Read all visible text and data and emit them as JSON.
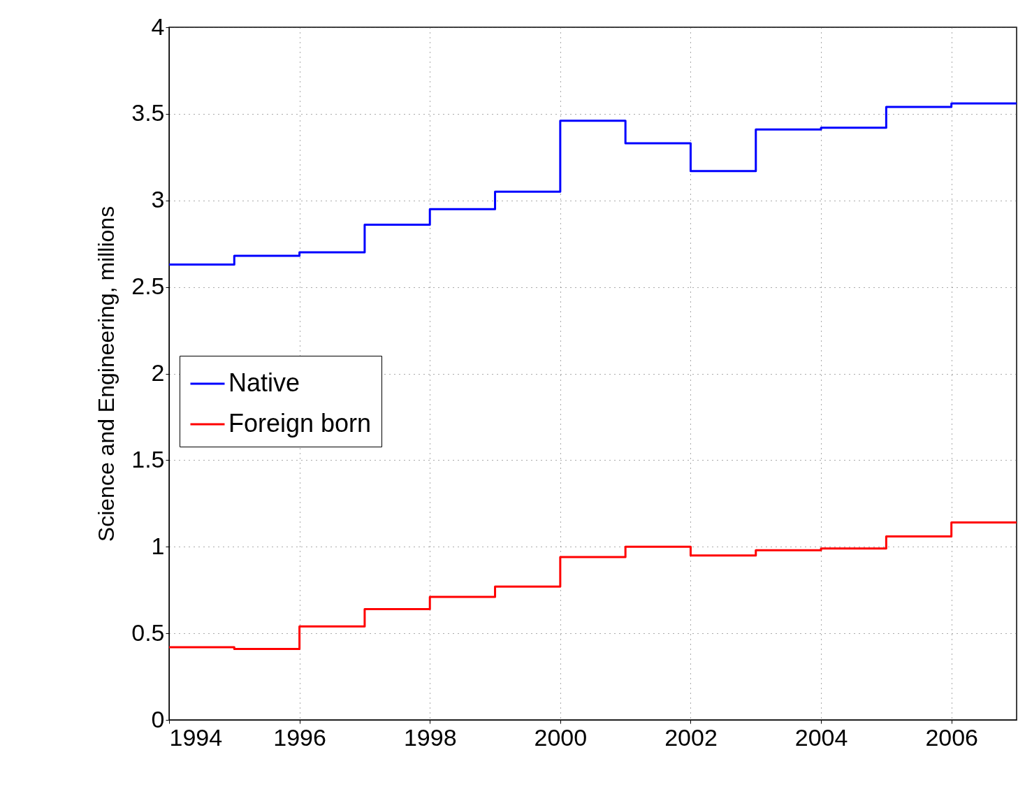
{
  "chart_data": {
    "type": "step",
    "ylabel": "Science and Engineering, millions",
    "x": [
      1994,
      1995,
      1996,
      1997,
      1998,
      1999,
      2000,
      2001,
      2002,
      2003,
      2004,
      2005,
      2006,
      2007
    ],
    "series": [
      {
        "name": "Native",
        "color": "#0000ff",
        "values": [
          2.63,
          2.68,
          2.7,
          2.86,
          2.95,
          3.05,
          3.46,
          3.33,
          3.17,
          3.41,
          3.42,
          3.54,
          3.56,
          3.56
        ]
      },
      {
        "name": "Foreign born",
        "color": "#ff0000",
        "values": [
          0.42,
          0.41,
          0.54,
          0.64,
          0.71,
          0.77,
          0.94,
          1.0,
          0.95,
          0.98,
          0.99,
          1.06,
          1.14,
          1.14
        ]
      }
    ],
    "xlim": [
      1994,
      2007
    ],
    "xticks": [
      1994,
      1996,
      1998,
      2000,
      2002,
      2004,
      2006
    ],
    "ylim": [
      0,
      4
    ],
    "yticks": [
      0,
      0.5,
      1,
      1.5,
      2,
      2.5,
      3,
      3.5,
      4
    ],
    "grid": true,
    "legend": "left",
    "line_style": "solid"
  }
}
